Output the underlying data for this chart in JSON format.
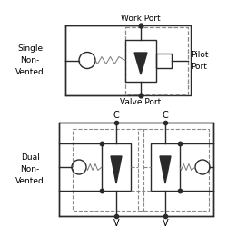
{
  "bg_color": "#ffffff",
  "line_color": "#2a2a2a",
  "dashed_color": "#888888",
  "text_color": "#000000",
  "figsize": [
    2.5,
    2.5
  ],
  "dpi": 100,
  "labels": {
    "single_label": [
      "Single",
      "Non-",
      "Vented"
    ],
    "dual_label": [
      "Dual",
      "Non-",
      "Vented"
    ],
    "work_port": "Work Port",
    "valve_port": "Valve Port",
    "pilot_port": [
      "Pilot",
      "Port"
    ],
    "C1": "C",
    "C2": "C",
    "V1": "V",
    "V2": "V"
  }
}
